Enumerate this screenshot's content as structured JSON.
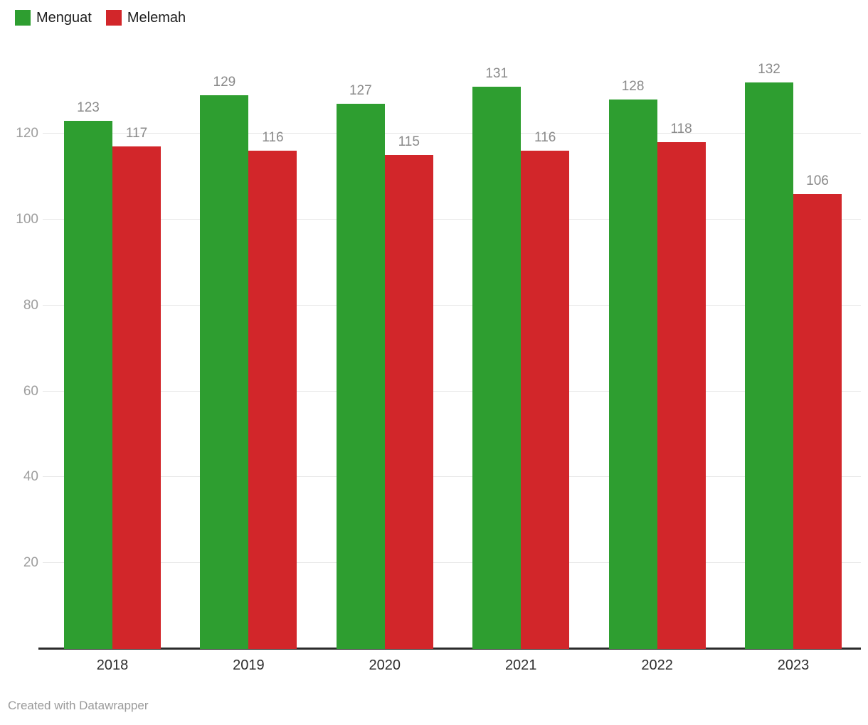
{
  "chart_data": {
    "type": "bar",
    "title": "",
    "categories": [
      "2018",
      "2019",
      "2020",
      "2021",
      "2022",
      "2023"
    ],
    "series": [
      {
        "name": "Menguat",
        "color": "#2e9e30",
        "values": [
          123,
          129,
          127,
          131,
          128,
          132
        ]
      },
      {
        "name": "Melemah",
        "color": "#d2262a",
        "values": [
          117,
          116,
          115,
          116,
          118,
          106
        ]
      }
    ],
    "ylim": [
      0,
      135
    ],
    "yticks": [
      20,
      40,
      60,
      80,
      100,
      120
    ],
    "grid": "horizontal",
    "legend_position": "top-left",
    "value_labels": true,
    "colors": {
      "gridline": "#e8e8e8",
      "baseline": "#2b2b2b",
      "tick_label": "#9e9e9e",
      "value_label": "#8a8a8a",
      "category_label": "#2e2e2e"
    }
  },
  "footer": {
    "credit": "Created with Datawrapper"
  }
}
